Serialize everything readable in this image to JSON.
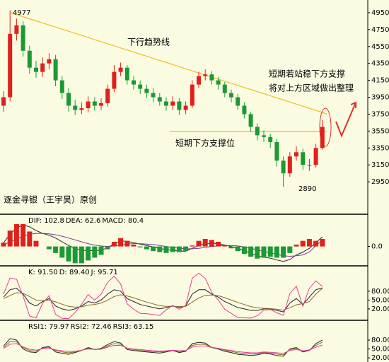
{
  "chart_data": [
    {
      "type": "candlestick",
      "title": "逐金寻银（王宇昊）原创",
      "annotations": [
        "4977",
        "2890",
        "下行趋势线",
        "短期若站稳下方支撑",
        "将对上方区域做出整理",
        "短期下方支撑位"
      ],
      "up_color": "#e0201b",
      "down_color": "#1b9a34",
      "open": [
        3850,
        3950,
        4700,
        4800,
        4500,
        4300,
        4250,
        4350,
        4400,
        4150,
        4000,
        3850,
        3800,
        3820,
        3900,
        3850,
        3880,
        4050,
        4250,
        4300,
        4150,
        4100,
        4050,
        4000,
        3950,
        3900,
        3850,
        3900,
        3800,
        3850,
        4100,
        4200,
        4220,
        4150,
        4100,
        4000,
        3950,
        3850,
        3750,
        3600,
        3500,
        3480,
        3420,
        3200,
        3050,
        3250,
        3300,
        3150,
        3150,
        3350
      ],
      "high": [
        4020,
        4977,
        4880,
        4850,
        4560,
        4380,
        4420,
        4470,
        4450,
        4200,
        4060,
        3920,
        3890,
        3960,
        3950,
        3940,
        4100,
        4330,
        4360,
        4330,
        4200,
        4150,
        4100,
        4060,
        4000,
        3950,
        3960,
        3940,
        3900,
        4150,
        4250,
        4280,
        4260,
        4190,
        4130,
        4040,
        3990,
        3890,
        3780,
        3640,
        3560,
        3520,
        3460,
        3250,
        3300,
        3370,
        3340,
        3220,
        3400,
        3680
      ],
      "low": [
        3780,
        3900,
        4620,
        4430,
        4230,
        4180,
        4190,
        4280,
        4080,
        3930,
        3780,
        3740,
        3750,
        3770,
        3790,
        3800,
        3840,
        4010,
        4200,
        4100,
        4040,
        3990,
        3940,
        3890,
        3850,
        3790,
        3800,
        3740,
        3750,
        3820,
        4060,
        4150,
        4100,
        4040,
        3950,
        3890,
        3800,
        3700,
        3540,
        3440,
        3420,
        3350,
        3130,
        2890,
        3010,
        3200,
        3090,
        3080,
        3120,
        3330
      ],
      "close": [
        3950,
        4700,
        4800,
        4500,
        4300,
        4250,
        4350,
        4400,
        4150,
        4000,
        3850,
        3800,
        3820,
        3900,
        3850,
        3880,
        4050,
        4250,
        4300,
        4150,
        4100,
        4050,
        4000,
        3950,
        3900,
        3850,
        3900,
        3800,
        3850,
        4100,
        4200,
        4220,
        4150,
        4100,
        4000,
        3950,
        3850,
        3750,
        3600,
        3500,
        3480,
        3420,
        3200,
        3050,
        3250,
        3300,
        3150,
        3150,
        3350,
        3600
      ],
      "ylim": [
        2575,
        5100
      ],
      "yticks": [
        2950,
        3150,
        3350,
        3550,
        3750,
        3950,
        4150,
        4350,
        4550,
        4750,
        4950
      ]
    },
    {
      "type": "macd",
      "series": [
        {
          "name": "DIF: 102.8",
          "color": "#222222",
          "label_color": "#3a78c8",
          "values": [
            40,
            130,
            200,
            230,
            210,
            170,
            140,
            120,
            90,
            50,
            10,
            -20,
            -40,
            -45,
            -45,
            -40,
            -15,
            30,
            60,
            55,
            40,
            25,
            10,
            -5,
            -20,
            -35,
            -40,
            -50,
            -50,
            -20,
            10,
            30,
            35,
            30,
            15,
            0,
            -20,
            -45,
            -75,
            -100,
            -115,
            -125,
            -145,
            -160,
            -140,
            -90,
            -60,
            -20,
            40,
            102.8
          ]
        },
        {
          "name": "DEA: 62.6",
          "color": "#7a3a9a",
          "label_color": "#000000",
          "values": [
            20,
            45,
            80,
            110,
            130,
            140,
            140,
            135,
            125,
            110,
            90,
            70,
            50,
            30,
            15,
            5,
            0,
            5,
            15,
            25,
            30,
            30,
            25,
            20,
            10,
            0,
            -10,
            -20,
            -25,
            -25,
            -20,
            -10,
            0,
            5,
            10,
            10,
            5,
            -5,
            -20,
            -35,
            -55,
            -70,
            -85,
            -100,
            -105,
            -100,
            -90,
            -60,
            10,
            62.6
          ]
        },
        {
          "name": "MACD: 80.4",
          "type": "bar",
          "color": "#e0201b",
          "neg_color": "#1b9a34",
          "label_color": "#d0308a",
          "values": [
            40,
            170,
            240,
            240,
            160,
            60,
            0,
            -30,
            -70,
            -120,
            -160,
            -180,
            -180,
            -150,
            -120,
            -90,
            -30,
            50,
            90,
            60,
            20,
            -10,
            -30,
            -50,
            -60,
            -70,
            -60,
            -60,
            -50,
            10,
            60,
            80,
            70,
            50,
            10,
            -20,
            -50,
            -80,
            -110,
            -130,
            -120,
            -110,
            -120,
            -120,
            -70,
            20,
            60,
            80,
            60,
            80.4
          ]
        }
      ],
      "ylim": [
        -200,
        330
      ],
      "yticks": [
        {
          "value": 0,
          "label": "0.0"
        }
      ]
    },
    {
      "type": "line",
      "series": [
        {
          "name": "K: 91.50",
          "color": "#222222",
          "values": [
            60,
            85,
            90,
            70,
            40,
            30,
            45,
            55,
            30,
            20,
            15,
            20,
            30,
            45,
            40,
            50,
            70,
            85,
            80,
            55,
            45,
            35,
            30,
            25,
            20,
            25,
            30,
            25,
            30,
            70,
            85,
            85,
            70,
            60,
            45,
            35,
            25,
            20,
            15,
            15,
            20,
            20,
            15,
            10,
            40,
            55,
            35,
            60,
            85,
            91.5
          ]
        },
        {
          "name": "D: 89.40",
          "color": "#8a6a2a",
          "values": [
            55,
            65,
            75,
            73,
            62,
            50,
            48,
            50,
            44,
            36,
            29,
            26,
            27,
            33,
            35,
            40,
            50,
            62,
            68,
            64,
            58,
            50,
            43,
            37,
            31,
            29,
            29,
            28,
            29,
            43,
            57,
            66,
            67,
            65,
            58,
            50,
            42,
            35,
            28,
            24,
            22,
            21,
            19,
            16,
            24,
            34,
            38,
            45,
            70,
            89.4
          ]
        },
        {
          "name": "J: 95.71",
          "color": "#e0409a",
          "values": [
            70,
            125,
            120,
            64,
            -4,
            -10,
            39,
            65,
            2,
            -12,
            -13,
            8,
            36,
            69,
            50,
            70,
            110,
            131,
            104,
            37,
            19,
            5,
            4,
            1,
            -2,
            17,
            32,
            19,
            32,
            124,
            141,
            123,
            76,
            50,
            19,
            5,
            -9,
            -10,
            -11,
            -3,
            16,
            18,
            7,
            -2,
            72,
            97,
            29,
            90,
            115,
            95.71
          ]
        }
      ],
      "ylim": [
        -16,
        161
      ],
      "yticks": [
        {
          "value": 20,
          "label": "20.00"
        },
        {
          "value": 50,
          "label": "50.00"
        },
        {
          "value": 80,
          "label": "80.00"
        }
      ]
    },
    {
      "type": "line",
      "series": [
        {
          "name": "RSI1: 79.97",
          "color": "#222222",
          "values": [
            60,
            85,
            80,
            50,
            40,
            38,
            55,
            58,
            40,
            35,
            32,
            38,
            45,
            55,
            48,
            52,
            65,
            75,
            70,
            48,
            45,
            42,
            40,
            38,
            36,
            40,
            45,
            38,
            42,
            68,
            72,
            70,
            55,
            50,
            42,
            38,
            32,
            30,
            28,
            30,
            35,
            33,
            28,
            25,
            50,
            55,
            40,
            45,
            68,
            79.97
          ]
        },
        {
          "name": "RSI2: 72.46",
          "color": "#8a6a2a",
          "values": [
            55,
            75,
            74,
            55,
            45,
            42,
            52,
            55,
            45,
            40,
            37,
            40,
            45,
            52,
            48,
            50,
            60,
            68,
            66,
            52,
            48,
            45,
            43,
            41,
            40,
            42,
            46,
            41,
            44,
            62,
            66,
            65,
            56,
            52,
            46,
            42,
            37,
            35,
            33,
            34,
            38,
            36,
            33,
            30,
            48,
            52,
            43,
            47,
            62,
            72.46
          ]
        },
        {
          "name": "RSI3: 63.15",
          "color": "#e0409a",
          "values": [
            52,
            66,
            68,
            57,
            49,
            46,
            51,
            53,
            47,
            44,
            41,
            42,
            46,
            50,
            48,
            49,
            56,
            62,
            62,
            53,
            50,
            48,
            46,
            44,
            43,
            44,
            46,
            44,
            45,
            56,
            60,
            60,
            55,
            52,
            48,
            45,
            41,
            39,
            37,
            37,
            40,
            39,
            37,
            35,
            45,
            48,
            44,
            46,
            56,
            63.15
          ]
        }
      ],
      "ylim": [
        6,
        142
      ],
      "yticks": [
        {
          "value": 20,
          "label": "20.00"
        },
        {
          "value": 50,
          "label": "50.00"
        },
        {
          "value": 80,
          "label": "80.00"
        }
      ]
    }
  ]
}
